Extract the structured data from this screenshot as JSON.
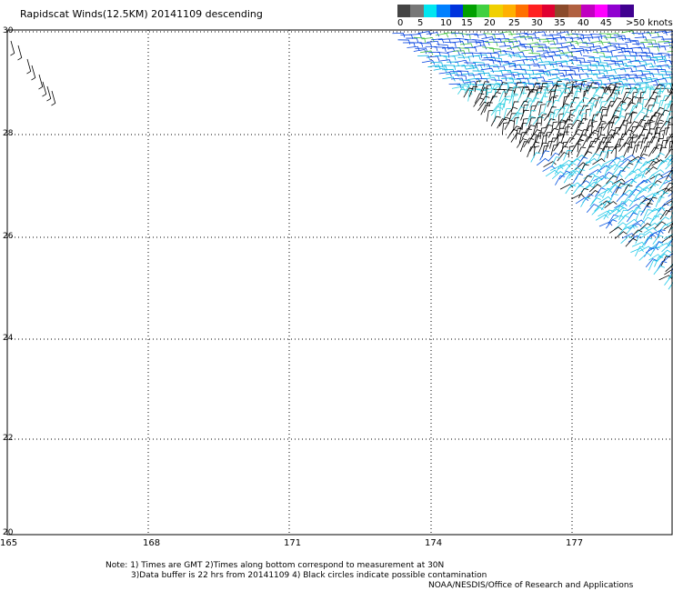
{
  "title": "Rapidscat Winds(12.5KM) 20141109 descending",
  "legend": {
    "labels": [
      "0",
      "5",
      "10",
      "15",
      "20",
      "25",
      "30",
      "35",
      "40",
      "45",
      ">50 knots"
    ],
    "colors": [
      "#444444",
      "#777777",
      "#00e6f0",
      "#0080ff",
      "#0033dd",
      "#00a000",
      "#40d040",
      "#f0d000",
      "#ffb000",
      "#ff7000",
      "#ff2020",
      "#e00030",
      "#8b4a2b",
      "#b06040",
      "#c000c0",
      "#ff00ff",
      "#9000d0",
      "#400090"
    ]
  },
  "map": {
    "lat_labels": [
      "30",
      "28",
      "26",
      "24",
      "22",
      "20"
    ],
    "lon_labels": [
      "165",
      "168",
      "171",
      "174",
      "177"
    ]
  },
  "notes": {
    "line1": "Note: 1) Times are GMT 2)Times along bottom correspond to measurement at 30N",
    "line2": "3)Data buffer is 22 hrs from 20141109 4) Black circles indicate possible contamination",
    "line3": "NOAA/NESDIS/Office of Research and Applications"
  }
}
